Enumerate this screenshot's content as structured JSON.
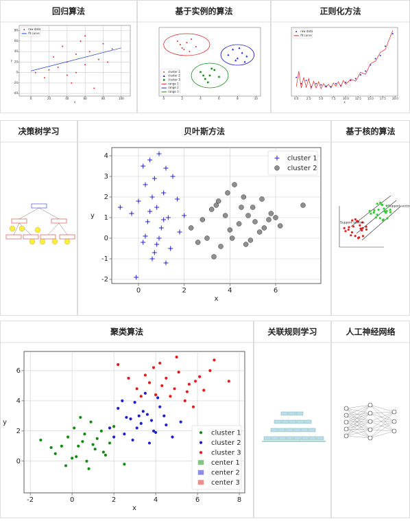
{
  "panels": [
    {
      "title": "回归算法",
      "chart": {
        "type": "scatter",
        "xlim": [
          -13,
          110
        ],
        "ylim": [
          -45,
          90
        ],
        "xticks": [
          0,
          20,
          40,
          60,
          80,
          100
        ],
        "yticks": [
          -40,
          -20,
          0,
          20,
          40,
          60,
          80
        ],
        "x_label": "x",
        "y_label": "y",
        "grid": true,
        "legend": "upper left",
        "series": [
          {
            "name": "raw data",
            "color": "#e41a1c",
            "marker": "dot",
            "x": [
              5,
              15,
              25,
              30,
              35,
              40,
              45,
              50,
              55,
              60,
              65,
              70,
              75,
              80,
              85,
              90,
              20,
              50,
              60,
              40
            ],
            "y": [
              0,
              -10,
              30,
              10,
              50,
              20,
              -20,
              35,
              60,
              15,
              40,
              -30,
              25,
              55,
              20,
              45,
              5,
              0,
              70,
              -5
            ]
          },
          {
            "name": "fit curve",
            "color": "#1f3fcf",
            "marker": "line",
            "x": [
              0,
              100
            ],
            "y": [
              3,
              47
            ]
          }
        ]
      }
    },
    {
      "title": "基于实例的算法",
      "chart": {
        "type": "scatter",
        "xlim": [
          -0.5,
          10.5
        ],
        "ylim": [
          0,
          10
        ],
        "xticks": [
          0,
          2,
          4,
          6,
          8,
          10
        ],
        "legend": "lower left",
        "series": [
          {
            "name": "cluster 1",
            "color": "#d62728",
            "marker": "dot",
            "x": [
              1.5,
              2.0,
              2.5,
              3.0,
              3.5,
              2.2,
              1.8,
              2.8
            ],
            "y": [
              8,
              7,
              7.8,
              8.3,
              7.2,
              6.8,
              7.5,
              6.5
            ]
          },
          {
            "name": "cluster 2",
            "color": "#1f1fd0",
            "marker": "triangle",
            "x": [
              7,
              7.5,
              8,
              8.5,
              9,
              8.2,
              7.8,
              8.8
            ],
            "y": [
              6,
              6.8,
              5.5,
              6.3,
              5.8,
              7,
              5.2,
              5
            ]
          },
          {
            "name": "cluster 3",
            "color": "#138a13",
            "marker": "square",
            "x": [
              4,
              4.5,
              5,
              5.5,
              6,
              4.8,
              5.2,
              4.3
            ],
            "y": [
              3.5,
              2.5,
              3,
              3.8,
              2.8,
              2,
              4,
              3
            ]
          },
          {
            "name": "range 1",
            "color": "#d62728",
            "marker": "ellipse",
            "ellipse": [
              2.5,
              7.5,
              2.5,
              1.6
            ]
          },
          {
            "name": "range 2",
            "color": "#1f1fd0",
            "marker": "ellipse",
            "ellipse": [
              8,
              6,
              1.8,
              1.5
            ]
          },
          {
            "name": "range 3",
            "color": "#138a13",
            "marker": "ellipse",
            "ellipse": [
              5,
              3,
              2.0,
              1.8
            ]
          }
        ]
      }
    },
    {
      "title": "正则化方法",
      "chart": {
        "type": "scatter",
        "xlim": [
          -1,
          20.5
        ],
        "ylim": [
          -1,
          10
        ],
        "xticks": [
          {
            "value": 0,
            "label": "0.0"
          },
          {
            "value": 2.5,
            "label": "2.5"
          },
          {
            "value": 5,
            "label": "5.0"
          },
          {
            "value": 7.5,
            "label": "7.5"
          },
          {
            "value": 10,
            "label": "10.0"
          },
          {
            "value": 12.5,
            "label": "12.5"
          },
          {
            "value": 15,
            "label": "15.0"
          },
          {
            "value": 17.5,
            "label": "17.5"
          },
          {
            "value": 20,
            "label": "20.0"
          }
        ],
        "x_label": "x",
        "legend": "upper left",
        "series": [
          {
            "name": "raw data",
            "color": "#1f1fd0",
            "marker": "dot",
            "x": [
              0,
              1,
              2,
              3,
              4,
              5,
              6,
              7,
              8,
              9,
              10,
              11,
              12,
              13,
              14,
              15,
              16,
              17,
              18,
              19.5
            ],
            "y": [
              2,
              1,
              1.5,
              0.5,
              1,
              0.8,
              0.6,
              0.5,
              1,
              0.7,
              1.2,
              1.5,
              1.8,
              2.4,
              3,
              4,
              5,
              5.5,
              7,
              9
            ]
          },
          {
            "name": "fit curve",
            "color": "#e41a1c",
            "marker": "line",
            "x": [
              0,
              0.5,
              1,
              1.5,
              2,
              2.5,
              3,
              3.5,
              4,
              4.5,
              5,
              5.5,
              6,
              6.5,
              7,
              7.5,
              8,
              8.5,
              9,
              9.5,
              10,
              11,
              12,
              13,
              14,
              15,
              16,
              17,
              18,
              19,
              19.5
            ],
            "y": [
              0.5,
              3,
              0.3,
              2,
              0.4,
              1.8,
              0.2,
              1.4,
              0.3,
              1.3,
              0.2,
              1,
              0.4,
              0.9,
              0.3,
              1.1,
              0.6,
              1.3,
              0.5,
              1.5,
              0.9,
              1.7,
              1.4,
              2.8,
              2.5,
              4.2,
              4.6,
              6,
              6.5,
              8.5,
              9.5
            ]
          }
        ]
      }
    },
    {
      "title": "决策树学习"
    },
    {
      "title": "贝叶斯方法",
      "chart": {
        "type": "scatter",
        "xlim": [
          -1.17,
          7.98
        ],
        "ylim": [
          -2.2,
          4.4
        ],
        "xticks": [
          0,
          2,
          4,
          6
        ],
        "yticks": [
          -2,
          -1,
          0,
          1,
          2,
          3,
          4
        ],
        "x_label": "x",
        "y_label": "y",
        "grid": true,
        "legend": "upper right",
        "series": [
          {
            "name": "cluster 1",
            "color": "#1f1fd0",
            "marker": "plus",
            "x": [
              0.2,
              0.5,
              0.9,
              1.2,
              0.7,
              0.3,
              1.5,
              1.1,
              0.6,
              0.0,
              -0.3,
              0.8,
              1.3,
              1.7,
              0.4,
              1.0,
              0.9,
              0.2,
              1.4,
              0.6,
              -0.8,
              1.8,
              0.7,
              1.1,
              0.3,
              0.5,
              2.0,
              1.2,
              0.8,
              -0.1
            ],
            "y": [
              3.5,
              3.8,
              4.1,
              3.4,
              2.9,
              2.6,
              3.0,
              2.2,
              2.0,
              1.8,
              1.2,
              1.5,
              1.0,
              1.9,
              0.8,
              0.5,
              0.0,
              -0.2,
              -0.5,
              -1.0,
              1.5,
              0.3,
              -0.7,
              0.9,
              0.1,
              1.3,
              1.1,
              -1.2,
              -0.3,
              -1.9
            ]
          },
          {
            "name": "cluster 2",
            "color": "#555555",
            "marker": "circle",
            "x": [
              2.3,
              2.8,
              3.2,
              3.5,
              3.9,
              4.2,
              4.5,
              4.8,
              5.1,
              5.4,
              5.8,
              6.2,
              3.0,
              3.6,
              4.0,
              4.4,
              4.9,
              5.3,
              5.7,
              6.0,
              7.2,
              3.3,
              3.8,
              4.6,
              5.0,
              2.6,
              4.1,
              4.7,
              5.5,
              3.4
            ],
            "y": [
              0.5,
              0.9,
              1.4,
              1.8,
              2.2,
              2.6,
              1.5,
              1.1,
              0.8,
              1.9,
              1.2,
              0.6,
              0.0,
              -0.4,
              0.4,
              0.7,
              -0.1,
              0.3,
              0.9,
              1.0,
              1.6,
              -0.9,
              1.1,
              2.0,
              1.5,
              -0.2,
              0.0,
              -0.3,
              0.5,
              1.6
            ]
          }
        ]
      }
    },
    {
      "title": "基于核的算法",
      "labels": [
        "Support vectors",
        "Support vectors"
      ]
    },
    {
      "title": "聚类算法",
      "chart": {
        "type": "scatter",
        "xlim": [
          -2.3,
          8.26
        ],
        "ylim": [
          -2.1,
          7.27
        ],
        "xticks": [
          -2,
          0,
          2,
          4,
          6,
          8
        ],
        "yticks": [
          0,
          2,
          4,
          6
        ],
        "x_label": "x",
        "y_label": "y",
        "grid": true,
        "legend": "lower right",
        "series": [
          {
            "name": "cluster 1",
            "color": "#138a13",
            "marker": "dot",
            "x": [
              -1.5,
              -0.8,
              -0.3,
              0.0,
              0.3,
              0.6,
              0.9,
              1.2,
              1.5,
              1.8,
              2.0,
              -0.5,
              0.2,
              0.8,
              1.1,
              1.4,
              0.4,
              -0.2,
              0.7,
              1.6,
              0.1,
              1.0,
              2.5,
              -1.0,
              0.5
            ],
            "y": [
              1.4,
              0.5,
              -0.3,
              0.2,
              1.0,
              1.8,
              2.6,
              1.5,
              0.6,
              1.2,
              2.3,
              1.0,
              0.3,
              -0.5,
              0.8,
              2.0,
              2.9,
              1.6,
              0.0,
              0.4,
              2.2,
              1.1,
              -0.2,
              0.9,
              1.3
            ]
          },
          {
            "name": "cluster 2",
            "color": "#1f1fd0",
            "marker": "dot",
            "x": [
              1.8,
              2.2,
              2.5,
              2.8,
              3.0,
              3.3,
              3.6,
              3.9,
              4.2,
              4.5,
              4.8,
              2.4,
              2.9,
              3.4,
              3.8,
              4.1,
              2.0,
              3.1,
              3.7,
              4.4,
              5.2,
              2.6,
              3.5,
              4.0,
              3.2
            ],
            "y": [
              2.2,
              3.5,
              1.8,
              2.8,
              3.9,
              2.5,
              3.1,
              2.0,
              3.6,
              2.4,
              1.6,
              4.0,
              1.4,
              3.3,
              2.7,
              4.2,
              1.6,
              2.2,
              1.2,
              3.0,
              2.6,
              2.9,
              4.5,
              1.9,
              3.0
            ]
          },
          {
            "name": "cluster 3",
            "color": "#e41a1c",
            "marker": "dot",
            "x": [
              2.2,
              2.7,
              3.1,
              3.5,
              3.9,
              4.3,
              4.7,
              5.1,
              5.5,
              5.9,
              6.3,
              6.8,
              3.3,
              4.0,
              4.5,
              5.0,
              5.4,
              5.8,
              6.1,
              7.5,
              4.2,
              4.9,
              3.7,
              5.6,
              6.6
            ],
            "y": [
              6.4,
              5.5,
              4.8,
              5.7,
              6.2,
              5.0,
              4.3,
              5.9,
              4.6,
              5.3,
              4.7,
              6.7,
              4.3,
              4.4,
              5.5,
              6.9,
              4.0,
              3.6,
              5.6,
              5.3,
              6.5,
              4.8,
              5.2,
              5.1,
              6.0
            ]
          },
          {
            "name": "center 1",
            "color": "#2ca02c",
            "marker": "patch"
          },
          {
            "name": "center 2",
            "color": "#3f3fe0",
            "marker": "patch"
          },
          {
            "name": "center 3",
            "color": "#e84040",
            "marker": "patch"
          }
        ]
      }
    },
    {
      "title": "关联规则学习"
    },
    {
      "title": "人工神经网络"
    }
  ]
}
